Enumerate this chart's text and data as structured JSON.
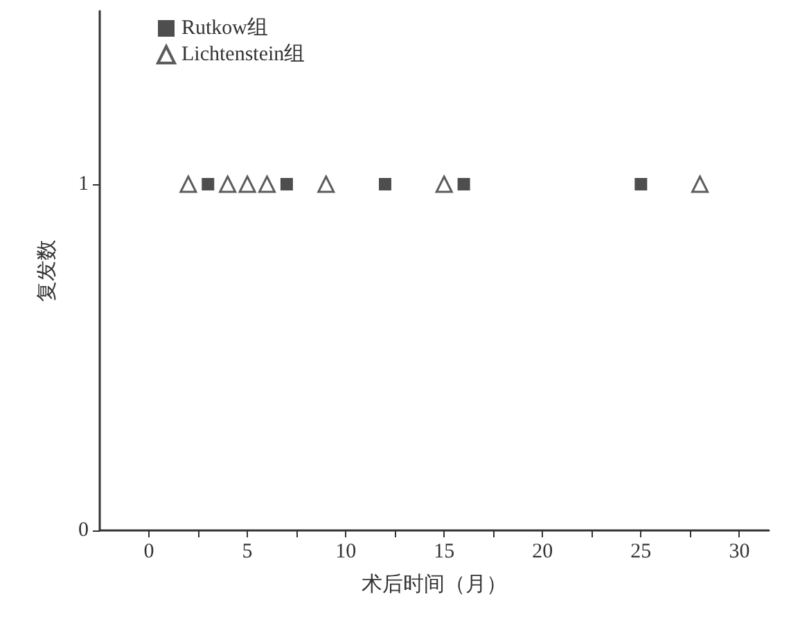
{
  "chart_data": {
    "type": "scatter",
    "xlabel": "术后时间（月）",
    "ylabel": "复发数",
    "xlim": [
      -2.5,
      31.5
    ],
    "ylim": [
      0,
      1.5
    ],
    "xticks": [
      0,
      {
        "value": 2.5,
        "label": null
      },
      5,
      {
        "value": 7.5,
        "label": null
      },
      10,
      {
        "value": 12.5,
        "label": null
      },
      15,
      {
        "value": 17.5,
        "label": null
      },
      20,
      {
        "value": 22.5,
        "label": null
      },
      25,
      {
        "value": 27.5,
        "label": null
      },
      30
    ],
    "yticks": [
      0,
      1
    ],
    "legend": "top left",
    "grid": false,
    "series": [
      {
        "name": "Rutkow组",
        "color": "#222222",
        "marker": "square",
        "x": [
          3,
          7,
          12,
          16,
          25
        ],
        "values": [
          1,
          1,
          1,
          1,
          1
        ]
      },
      {
        "name": "Lichtenstein组",
        "color": "#333333",
        "marker": "triangle",
        "x": [
          2,
          4,
          5,
          6,
          9,
          15,
          28
        ],
        "values": [
          1,
          1,
          1,
          1,
          1,
          1,
          1
        ]
      }
    ]
  }
}
